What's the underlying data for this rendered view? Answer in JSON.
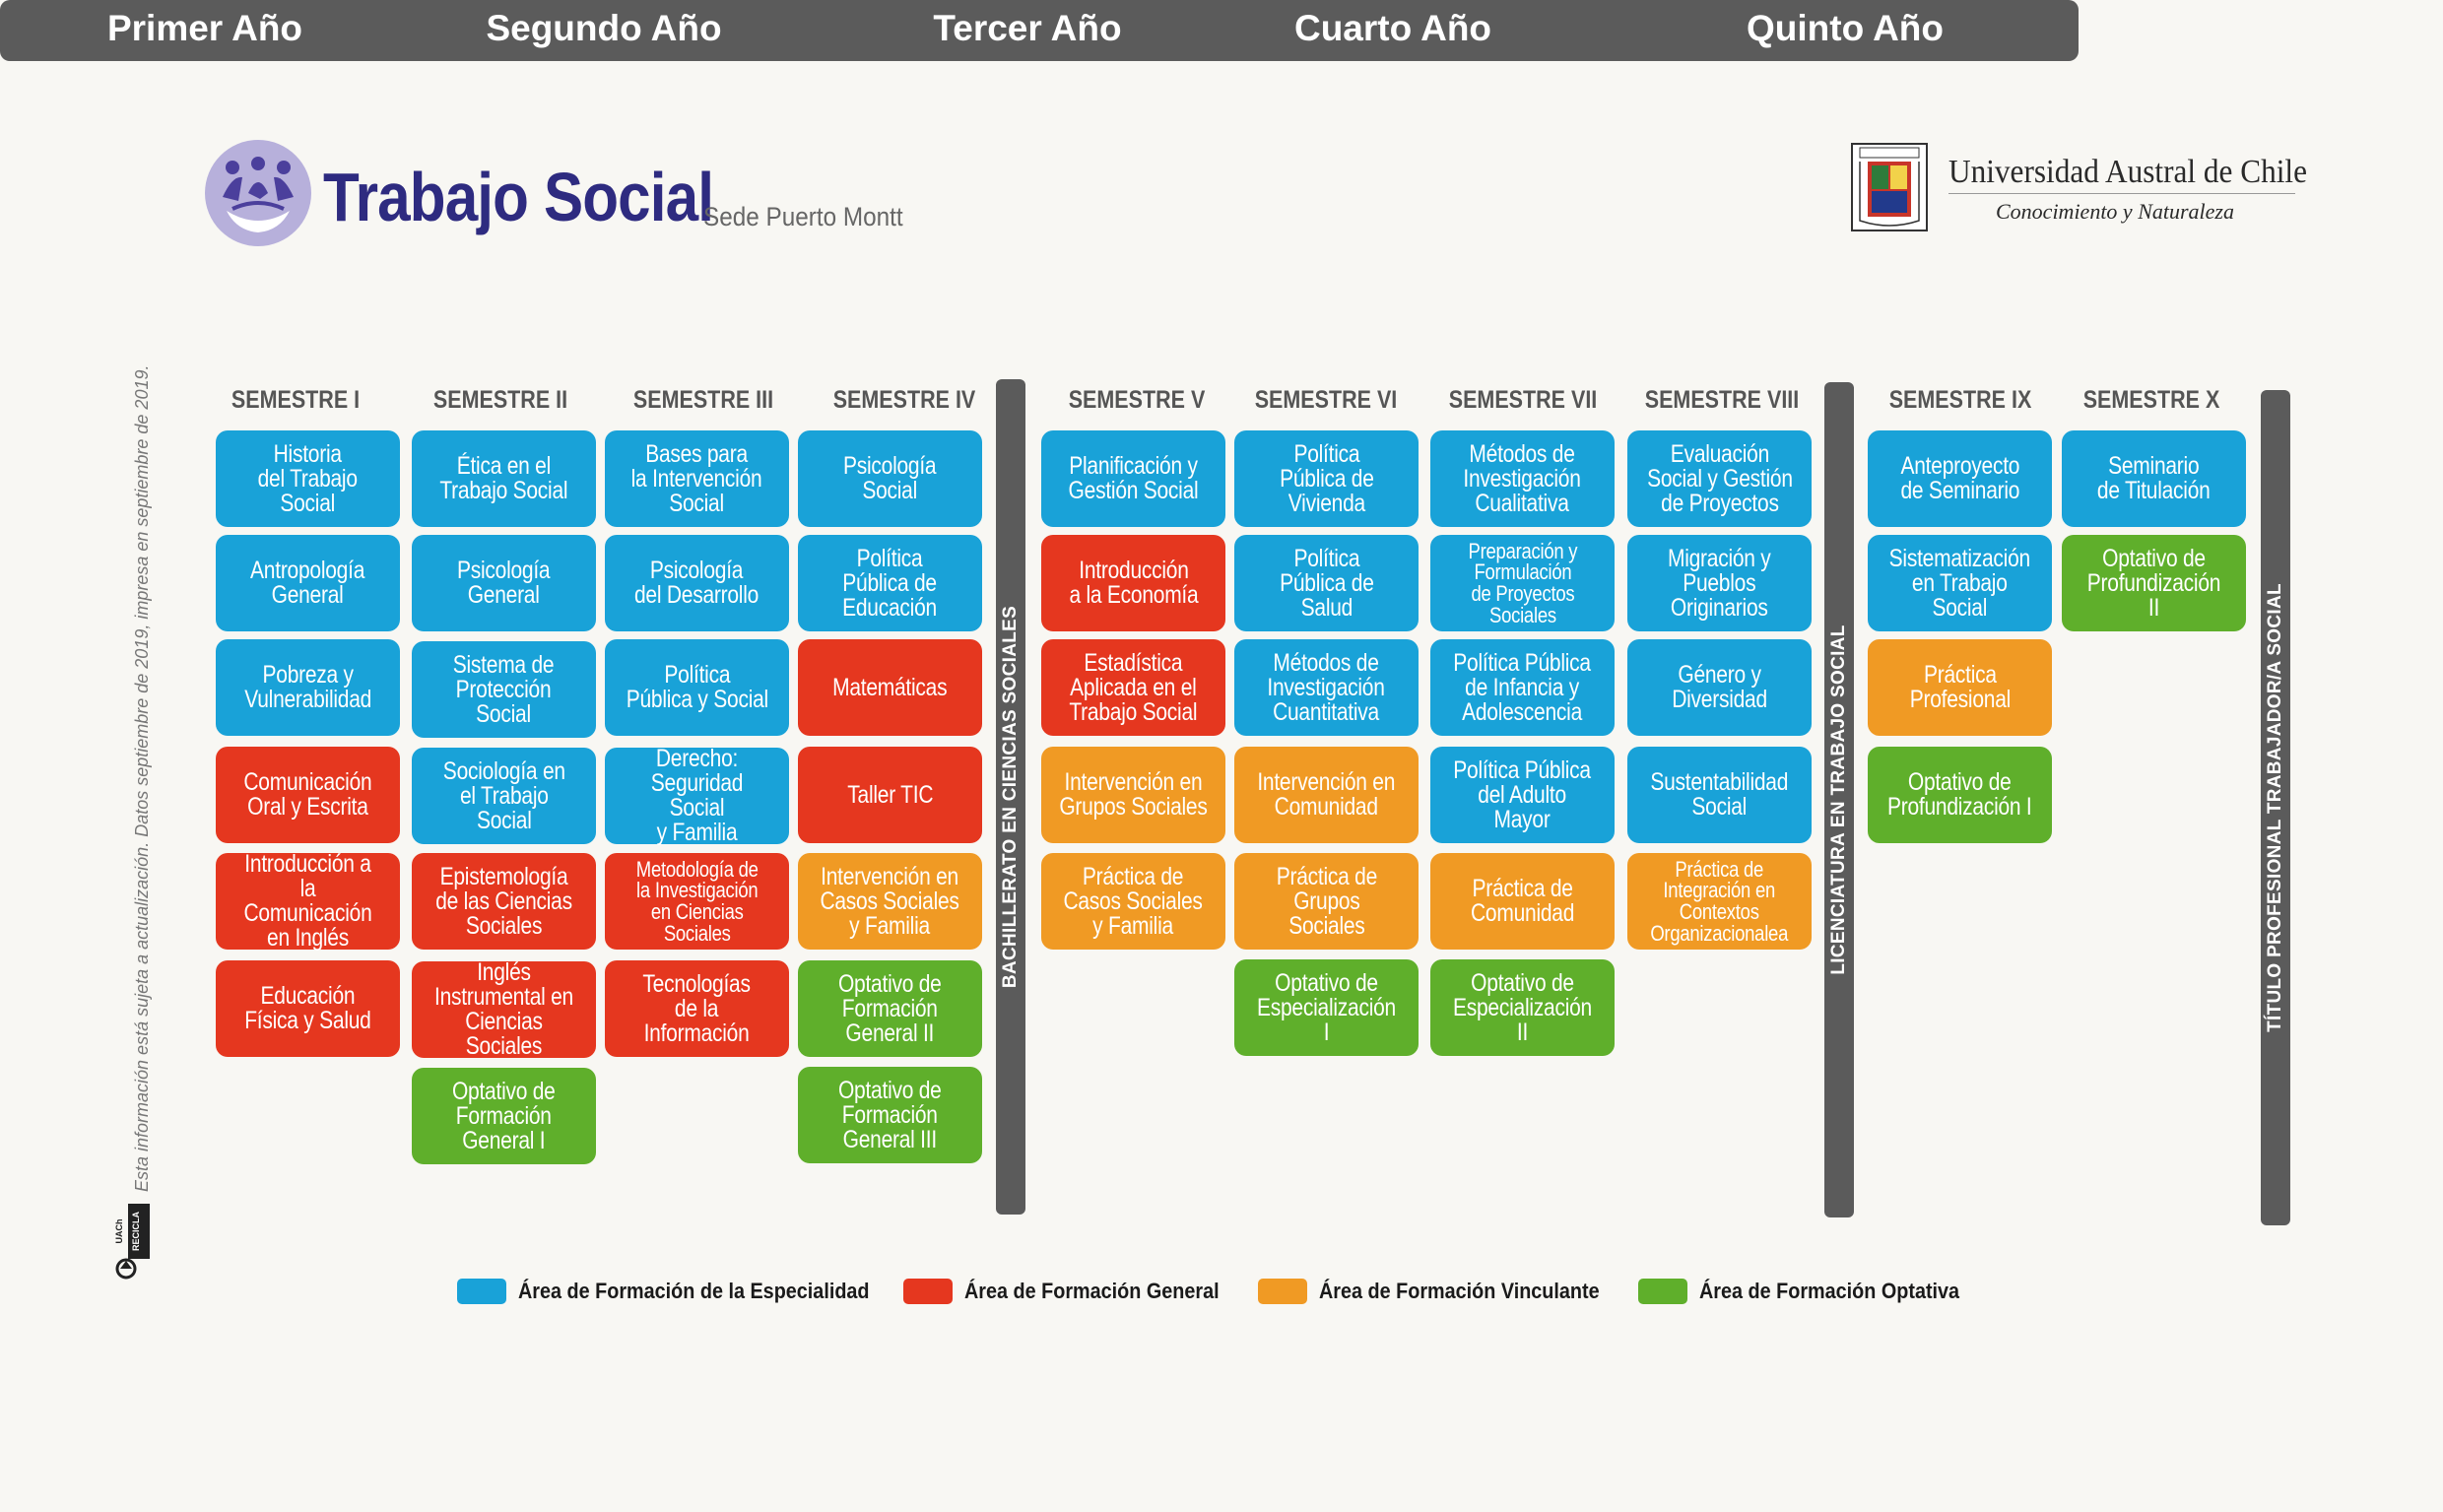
{
  "header": {
    "title": "Trabajo Social",
    "subtitle": "Sede Puerto Montt",
    "university_name": "Universidad Austral de Chile",
    "university_motto": "Conocimiento y Naturaleza",
    "logo_icon": "people-handshake-icon",
    "crest_icon": "university-crest-icon"
  },
  "side_note": "Esta información está sujeta a actualización. Datos septiembre de 2019, impresa en septiembre de 2019.",
  "recycle_logo_text": "UACh RECICLA",
  "colors": {
    "especialidad": "#19a2d8",
    "general": "#e5371f",
    "vinculante": "#f09a24",
    "optativa": "#5faf2b",
    "bar": "#5b5b5b",
    "title": "#2e2b80"
  },
  "years": [
    "Primer Año",
    "Segundo Año",
    "Tercer Año",
    "Cuarto Año",
    "Quinto Año"
  ],
  "semesters": [
    {
      "label": "SEMESTRE I",
      "courses": [
        {
          "name": "Historia\ndel Trabajo\nSocial",
          "area": "esp"
        },
        {
          "name": "Antropología\nGeneral",
          "area": "esp"
        },
        {
          "name": "Pobreza y\nVulnerabilidad",
          "area": "esp"
        },
        {
          "name": "Comunicación\nOral y Escrita",
          "area": "gen"
        },
        {
          "name": "Introducción a\nla Comunicación\nen Inglés",
          "area": "gen"
        },
        {
          "name": "Educación\nFísica y Salud",
          "area": "gen"
        }
      ]
    },
    {
      "label": "SEMESTRE II",
      "courses": [
        {
          "name": "Ética en el\nTrabajo Social",
          "area": "esp"
        },
        {
          "name": "Psicología\nGeneral",
          "area": "esp"
        },
        {
          "name": "Sistema de\nProtección\nSocial",
          "area": "esp"
        },
        {
          "name": "Sociología en\nel Trabajo\nSocial",
          "area": "esp"
        },
        {
          "name": "Epistemología\nde las Ciencias\nSociales",
          "area": "gen"
        },
        {
          "name": "Inglés\nInstrumental en\nCiencias Sociales",
          "area": "gen"
        },
        {
          "name": "Optativo de\nFormación\nGeneral I",
          "area": "opt"
        }
      ]
    },
    {
      "label": "SEMESTRE III",
      "courses": [
        {
          "name": "Bases para\nla Intervención\nSocial",
          "area": "esp"
        },
        {
          "name": "Psicología\ndel Desarrollo",
          "area": "esp"
        },
        {
          "name": "Política\nPública y Social",
          "area": "esp"
        },
        {
          "name": "Derecho:\nSeguridad Social\ny Familia",
          "area": "esp"
        },
        {
          "name": "Metodología de\nla Investigación\nen Ciencias\nSociales",
          "area": "gen",
          "small": true
        },
        {
          "name": "Tecnologías\nde la\nInformación",
          "area": "gen"
        }
      ]
    },
    {
      "label": "SEMESTRE IV",
      "courses": [
        {
          "name": "Psicología\nSocial",
          "area": "esp"
        },
        {
          "name": "Política\nPública de\nEducación",
          "area": "esp"
        },
        {
          "name": "Matemáticas",
          "area": "gen"
        },
        {
          "name": "Taller TIC",
          "area": "gen"
        },
        {
          "name": "Intervención en\nCasos Sociales\ny Familia",
          "area": "vin"
        },
        {
          "name": "Optativo de\nFormación\nGeneral II",
          "area": "opt"
        },
        {
          "name": "Optativo de\nFormación\nGeneral III",
          "area": "opt"
        }
      ]
    },
    {
      "label": "SEMESTRE V",
      "courses": [
        {
          "name": "Planificación y\nGestión Social",
          "area": "esp"
        },
        {
          "name": "Introducción\na la Economía",
          "area": "gen"
        },
        {
          "name": "Estadística\nAplicada en el\nTrabajo Social",
          "area": "gen"
        },
        {
          "name": "Intervención en\nGrupos Sociales",
          "area": "vin"
        },
        {
          "name": "Práctica de\nCasos Sociales\ny Familia",
          "area": "vin"
        }
      ]
    },
    {
      "label": "SEMESTRE VI",
      "courses": [
        {
          "name": "Política\nPública de\nVivienda",
          "area": "esp"
        },
        {
          "name": "Política\nPública de\nSalud",
          "area": "esp"
        },
        {
          "name": "Métodos de\nInvestigación\nCuantitativa",
          "area": "esp"
        },
        {
          "name": "Intervención en\nComunidad",
          "area": "vin"
        },
        {
          "name": "Práctica de\nGrupos\nSociales",
          "area": "vin"
        },
        {
          "name": "Optativo de\nEspecialización I",
          "area": "opt"
        }
      ]
    },
    {
      "label": "SEMESTRE VII",
      "courses": [
        {
          "name": "Métodos de\nInvestigación\nCualitativa",
          "area": "esp"
        },
        {
          "name": "Preparación y\nFormulación\nde Proyectos\nSociales",
          "area": "esp",
          "small": true
        },
        {
          "name": "Política Pública\nde Infancia y\nAdolescencia",
          "area": "esp"
        },
        {
          "name": "Política Pública\ndel Adulto\nMayor",
          "area": "esp"
        },
        {
          "name": "Práctica de\nComunidad",
          "area": "vin"
        },
        {
          "name": "Optativo de\nEspecialización II",
          "area": "opt"
        }
      ]
    },
    {
      "label": "SEMESTRE VIII",
      "courses": [
        {
          "name": "Evaluación\nSocial y Gestión\nde Proyectos",
          "area": "esp"
        },
        {
          "name": "Migración y\nPueblos\nOriginarios",
          "area": "esp"
        },
        {
          "name": "Género y\nDiversidad",
          "area": "esp"
        },
        {
          "name": "Sustentabilidad\nSocial",
          "area": "esp"
        },
        {
          "name": "Práctica de\nIntegración en\nContextos\nOrganizacionalea",
          "area": "vin",
          "small": true
        }
      ]
    },
    {
      "label": "SEMESTRE IX",
      "courses": [
        {
          "name": "Anteproyecto\nde Seminario",
          "area": "esp"
        },
        {
          "name": "Sistematización\nen Trabajo\nSocial",
          "area": "esp"
        },
        {
          "name": "Práctica\nProfesional",
          "area": "vin"
        },
        {
          "name": "Optativo de\nProfundización I",
          "area": "opt"
        }
      ]
    },
    {
      "label": "SEMESTRE X",
      "courses": [
        {
          "name": "Seminario\nde Titulación",
          "area": "esp"
        },
        {
          "name": "Optativo de\nProfundización II",
          "area": "opt"
        }
      ]
    }
  ],
  "degrees": [
    {
      "label": "BACHILLERATO EN CIENCIAS SOCIALES"
    },
    {
      "label": "LICENCIATURA EN TRABAJO SOCIAL"
    },
    {
      "label": "TÍTULO PROFESIONAL TRABAJADOR/A SOCIAL"
    }
  ],
  "legend": [
    {
      "label": "Área de Formación de la Especialidad",
      "area": "esp"
    },
    {
      "label": "Área de Formación General",
      "area": "gen"
    },
    {
      "label": "Área de Formación Vinculante",
      "area": "vin"
    },
    {
      "label": "Área de Formación Optativa",
      "area": "opt"
    }
  ]
}
